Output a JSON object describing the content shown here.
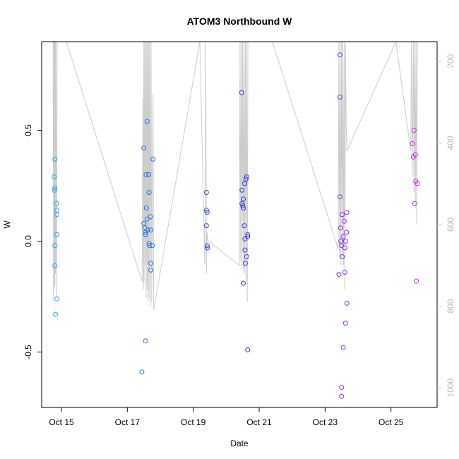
{
  "chart_data": {
    "type": "scatter",
    "title": "ATOM3 Northbound W",
    "xlabel": "Date",
    "ylabel": "W",
    "x_ticks": [
      "Oct 15",
      "Oct 17",
      "Oct 19",
      "Oct 21",
      "Oct 23",
      "Oct 25"
    ],
    "x_tick_values": [
      15,
      17,
      19,
      21,
      23,
      25
    ],
    "xlim": [
      14.4,
      26.4
    ],
    "ylim": [
      -0.75,
      0.9
    ],
    "y_ticks": [
      -0.5,
      0.0,
      0.5
    ],
    "y_tick_labels": [
      "-0.5",
      "0.0",
      "0.5"
    ],
    "right_axis": {
      "label": "",
      "ticks": [
        200,
        400,
        600,
        800,
        1000
      ],
      "range": [
        152,
        1048
      ],
      "reversed": true,
      "color": "#bdbdbd"
    },
    "points_color_start": "#22aaee",
    "points_color_end": "#dd22ee",
    "points": [
      [
        14.78,
        0.29
      ],
      [
        14.79,
        0.23
      ],
      [
        14.8,
        0.24
      ],
      [
        14.8,
        0.37
      ],
      [
        14.8,
        -0.02
      ],
      [
        14.8,
        -0.11
      ],
      [
        14.82,
        -0.33
      ],
      [
        14.85,
        0.17
      ],
      [
        14.86,
        0.14
      ],
      [
        14.86,
        0.12
      ],
      [
        14.86,
        0.03
      ],
      [
        14.86,
        -0.26
      ],
      [
        17.44,
        -0.59
      ],
      [
        17.5,
        0.42
      ],
      [
        17.5,
        0.08
      ],
      [
        17.53,
        0.06
      ],
      [
        17.55,
        0.04
      ],
      [
        17.55,
        0.03
      ],
      [
        17.55,
        -0.45
      ],
      [
        17.57,
        0.3
      ],
      [
        17.58,
        0.15
      ],
      [
        17.6,
        0.54
      ],
      [
        17.6,
        0.1
      ],
      [
        17.62,
        0.05
      ],
      [
        17.65,
        0.3
      ],
      [
        17.66,
        0.22
      ],
      [
        17.66,
        -0.01
      ],
      [
        17.68,
        -0.02
      ],
      [
        17.7,
        0.11
      ],
      [
        17.71,
        0.05
      ],
      [
        17.71,
        -0.1
      ],
      [
        17.71,
        -0.13
      ],
      [
        17.76,
        -0.02
      ],
      [
        17.78,
        0.37
      ],
      [
        19.4,
        0.22
      ],
      [
        19.4,
        0.14
      ],
      [
        19.4,
        0.07
      ],
      [
        19.42,
        0.13
      ],
      [
        19.42,
        -0.02
      ],
      [
        19.43,
        -0.03
      ],
      [
        20.47,
        0.67
      ],
      [
        20.48,
        0.23
      ],
      [
        20.48,
        0.17
      ],
      [
        20.5,
        0.16
      ],
      [
        20.52,
        0.19
      ],
      [
        20.52,
        0.15
      ],
      [
        20.52,
        -0.19
      ],
      [
        20.55,
        0.07
      ],
      [
        20.56,
        0.26
      ],
      [
        20.57,
        0.01
      ],
      [
        20.57,
        -0.04
      ],
      [
        20.58,
        -0.1
      ],
      [
        20.6,
        0.28
      ],
      [
        20.62,
        0.29
      ],
      [
        20.62,
        -0.07
      ],
      [
        20.65,
        0.03
      ],
      [
        20.65,
        0.02
      ],
      [
        20.65,
        -0.49
      ],
      [
        23.42,
        -0.15
      ],
      [
        23.45,
        0.84
      ],
      [
        23.45,
        0.65
      ],
      [
        23.45,
        0.2
      ],
      [
        23.47,
        0.06
      ],
      [
        23.48,
        0.0
      ],
      [
        23.5,
        -0.02
      ],
      [
        23.5,
        -0.66
      ],
      [
        23.5,
        -0.7
      ],
      [
        23.52,
        0.12
      ],
      [
        23.52,
        -0.07
      ],
      [
        23.55,
        0.02
      ],
      [
        23.55,
        -0.48
      ],
      [
        23.58,
        0.09
      ],
      [
        23.6,
        -0.14
      ],
      [
        23.6,
        -0.03
      ],
      [
        23.62,
        0.0
      ],
      [
        23.62,
        -0.37
      ],
      [
        23.65,
        0.04
      ],
      [
        23.66,
        0.13
      ],
      [
        23.66,
        -0.28
      ],
      [
        25.65,
        0.44
      ],
      [
        25.68,
        0.38
      ],
      [
        25.7,
        0.5
      ],
      [
        25.72,
        0.17
      ],
      [
        25.74,
        0.39
      ],
      [
        25.75,
        0.27
      ],
      [
        25.77,
        -0.18
      ],
      [
        25.8,
        0.26
      ]
    ],
    "depth_line": [
      [
        14.75,
        152
      ],
      [
        14.76,
        780
      ],
      [
        14.77,
        152
      ],
      [
        14.78,
        760
      ],
      [
        14.79,
        152
      ],
      [
        14.8,
        750
      ],
      [
        14.81,
        152
      ],
      [
        14.82,
        720
      ],
      [
        14.83,
        152
      ],
      [
        14.85,
        780
      ],
      [
        14.87,
        152
      ],
      [
        15.15,
        152
      ],
      [
        17.45,
        740
      ],
      [
        17.47,
        290
      ],
      [
        17.49,
        760
      ],
      [
        17.5,
        152
      ],
      [
        17.51,
        740
      ],
      [
        17.53,
        152
      ],
      [
        17.54,
        700
      ],
      [
        17.56,
        152
      ],
      [
        17.57,
        780
      ],
      [
        17.59,
        152
      ],
      [
        17.6,
        760
      ],
      [
        17.62,
        152
      ],
      [
        17.63,
        790
      ],
      [
        17.65,
        152
      ],
      [
        17.66,
        780
      ],
      [
        17.68,
        152
      ],
      [
        17.7,
        800
      ],
      [
        17.72,
        152
      ],
      [
        17.74,
        790
      ],
      [
        17.78,
        280
      ],
      [
        17.8,
        810
      ],
      [
        19.2,
        152
      ],
      [
        19.35,
        700
      ],
      [
        19.38,
        152
      ],
      [
        19.4,
        720
      ],
      [
        19.42,
        620
      ],
      [
        19.45,
        640
      ],
      [
        20.4,
        700
      ],
      [
        20.42,
        152
      ],
      [
        20.44,
        690
      ],
      [
        20.46,
        152
      ],
      [
        20.48,
        700
      ],
      [
        20.5,
        152
      ],
      [
        20.52,
        710
      ],
      [
        20.54,
        152
      ],
      [
        20.56,
        720
      ],
      [
        20.58,
        152
      ],
      [
        20.6,
        740
      ],
      [
        20.62,
        152
      ],
      [
        20.64,
        790
      ],
      [
        20.66,
        152
      ],
      [
        21.4,
        152
      ],
      [
        23.4,
        660
      ],
      [
        23.42,
        152
      ],
      [
        23.44,
        680
      ],
      [
        23.46,
        152
      ],
      [
        23.48,
        700
      ],
      [
        23.5,
        152
      ],
      [
        23.52,
        680
      ],
      [
        23.54,
        152
      ],
      [
        23.56,
        700
      ],
      [
        23.58,
        152
      ],
      [
        23.6,
        760
      ],
      [
        23.62,
        160
      ],
      [
        23.64,
        350
      ],
      [
        23.66,
        420
      ],
      [
        25.15,
        152
      ],
      [
        25.6,
        420
      ],
      [
        25.62,
        152
      ],
      [
        25.65,
        480
      ],
      [
        25.68,
        152
      ],
      [
        25.7,
        520
      ],
      [
        25.72,
        152
      ],
      [
        25.74,
        560
      ],
      [
        25.76,
        152
      ],
      [
        25.78,
        600
      ],
      [
        25.8,
        152
      ]
    ],
    "depth_line_color": "#cccccc",
    "grid": false,
    "legend": "none"
  }
}
